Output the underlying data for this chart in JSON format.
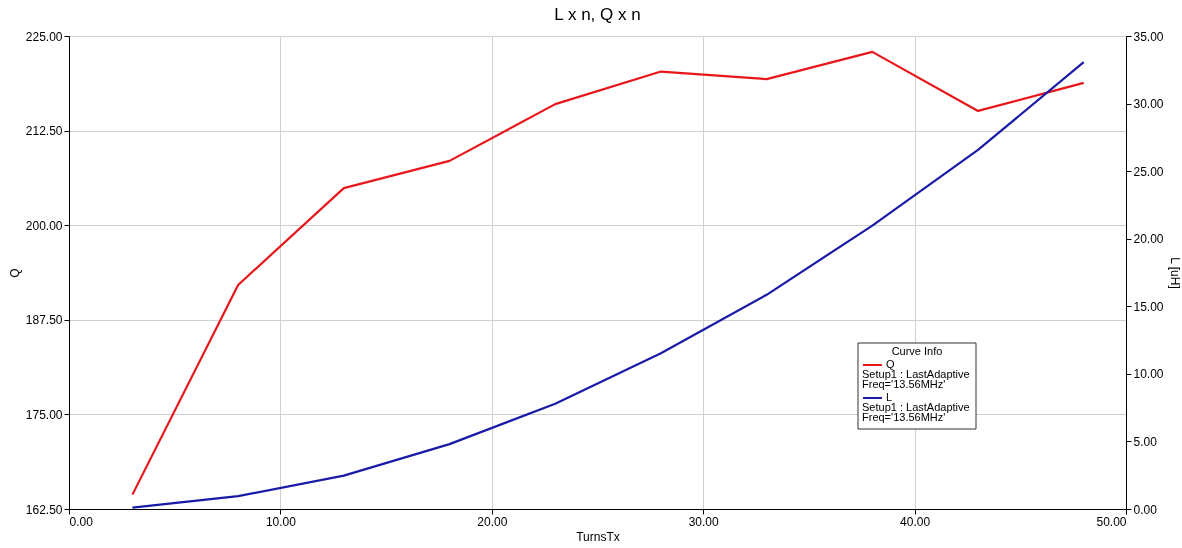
{
  "chart_data": {
    "type": "line",
    "title": "L x n, Q x n",
    "xlabel": "TurnsTx",
    "ylabel": "Q",
    "y2label": "L [uH]",
    "legend_title": "Curve Info",
    "x": [
      3,
      8,
      13,
      18,
      23,
      28,
      33,
      38,
      43,
      48
    ],
    "series": [
      {
        "name": "Q",
        "color": "#e8161b",
        "values": [
          164.4,
          192.1,
          204.9,
          208.5,
          216.0,
          220.3,
          219.3,
          222.9,
          215.1,
          218.8
        ]
      },
      {
        "name": "L",
        "color": "#1a1aa8",
        "axis": "y2",
        "values": [
          0.1,
          0.95,
          2.47,
          4.8,
          7.79,
          11.53,
          15.85,
          20.97,
          26.57,
          33.06
        ]
      }
    ],
    "xlim": [
      0,
      50
    ],
    "xticks": [
      {
        "value": 0,
        "label": "0.00"
      },
      {
        "value": 10,
        "label": "10.00"
      },
      {
        "value": 20,
        "label": "20.00"
      },
      {
        "value": 30,
        "label": "30.00"
      },
      {
        "value": 40,
        "label": "40.00"
      },
      {
        "value": 50,
        "label": "50.00"
      }
    ],
    "ylim": [
      162.5,
      225
    ],
    "yticks": [
      {
        "value": 162.5,
        "label": "162.50"
      },
      {
        "value": 175,
        "label": "175.00"
      },
      {
        "value": 187.5,
        "label": "187.50"
      },
      {
        "value": 200,
        "label": "200.00"
      },
      {
        "value": 212.5,
        "label": "212.50"
      },
      {
        "value": 225,
        "label": "225.00"
      }
    ],
    "y2lim": [
      0,
      35
    ],
    "y2ticks": [
      {
        "value": 0,
        "label": "0.00"
      },
      {
        "value": 5,
        "label": "5.00"
      },
      {
        "value": 10,
        "label": "10.00"
      },
      {
        "value": 15,
        "label": "15.00"
      },
      {
        "value": 20,
        "label": "20.00"
      },
      {
        "value": 25,
        "label": "25.00"
      },
      {
        "value": 30,
        "label": "30.00"
      },
      {
        "value": 35,
        "label": "35.00"
      }
    ],
    "annotations": [
      "Setup1 : LastAdaptive",
      "Freq='13.56MHz'",
      "Setup1 : LastAdaptive",
      "Freq='13.56MHz'"
    ],
    "grid": true,
    "legend": "bottom right",
    "marker": "none",
    "line_style": "solid"
  }
}
